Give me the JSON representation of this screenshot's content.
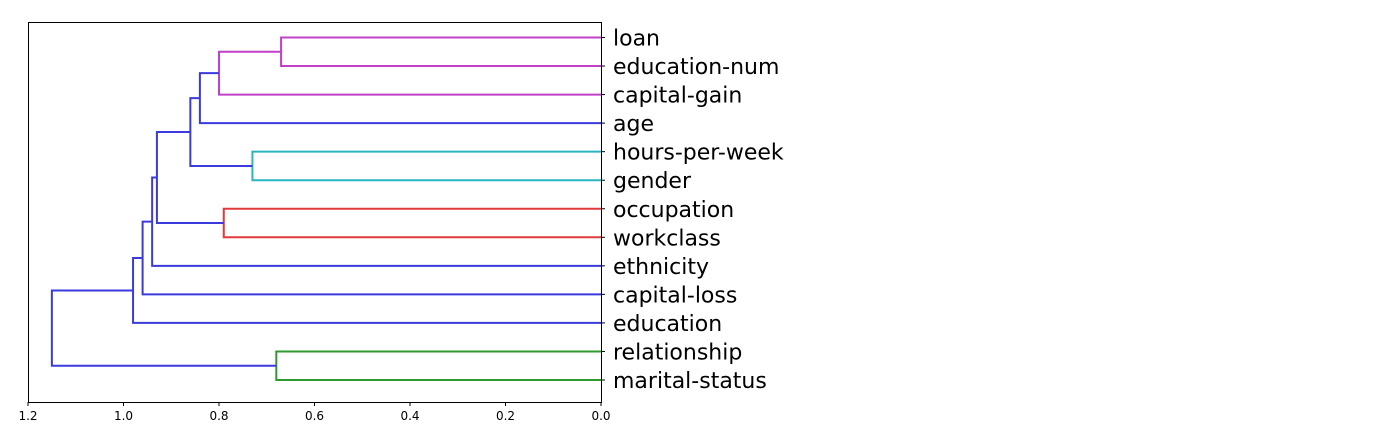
{
  "chart_data": {
    "type": "dendrogram",
    "orientation": "left",
    "xlim": [
      1.2,
      0.0
    ],
    "xticks": [
      1.2,
      1.0,
      0.8,
      0.6,
      0.4,
      0.2,
      0.0
    ],
    "xtick_labels": [
      "1.2",
      "1.0",
      "0.8",
      "0.6",
      "0.4",
      "0.2",
      "0.0"
    ],
    "leaves": [
      "loan",
      "education-num",
      "capital-gain",
      "age",
      "hours-per-week",
      "gender",
      "occupation",
      "workclass",
      "ethnicity",
      "capital-loss",
      "education",
      "relationship",
      "marital-status"
    ],
    "colors": {
      "above_threshold": "#3b3bdd",
      "magenta": "#c040c8",
      "cyan": "#29b5c2",
      "red": "#e23a3a",
      "green": "#2e9a2e"
    },
    "merges": [
      {
        "id": "m1",
        "left": "loan",
        "right": "education-num",
        "height": 0.67,
        "color": "magenta"
      },
      {
        "id": "m2",
        "left": "m1",
        "right": "capital-gain",
        "height": 0.8,
        "color": "magenta"
      },
      {
        "id": "m3",
        "left": "m2",
        "right": "age",
        "height": 0.84,
        "color": "above_threshold"
      },
      {
        "id": "m4",
        "left": "hours-per-week",
        "right": "gender",
        "height": 0.73,
        "color": "cyan"
      },
      {
        "id": "m5",
        "left": "m3",
        "right": "m4",
        "height": 0.86,
        "color": "above_threshold"
      },
      {
        "id": "m6",
        "left": "occupation",
        "right": "workclass",
        "height": 0.79,
        "color": "red"
      },
      {
        "id": "m7",
        "left": "m5",
        "right": "m6",
        "height": 0.93,
        "color": "above_threshold"
      },
      {
        "id": "m8",
        "left": "m7",
        "right": "ethnicity",
        "height": 0.94,
        "color": "above_threshold"
      },
      {
        "id": "m9",
        "left": "m8",
        "right": "capital-loss",
        "height": 0.96,
        "color": "above_threshold"
      },
      {
        "id": "m10",
        "left": "m9",
        "right": "education",
        "height": 0.98,
        "color": "above_threshold"
      },
      {
        "id": "m11",
        "left": "relationship",
        "right": "marital-status",
        "height": 0.68,
        "color": "green"
      },
      {
        "id": "m12",
        "left": "m10",
        "right": "m11",
        "height": 1.15,
        "color": "above_threshold"
      }
    ]
  }
}
